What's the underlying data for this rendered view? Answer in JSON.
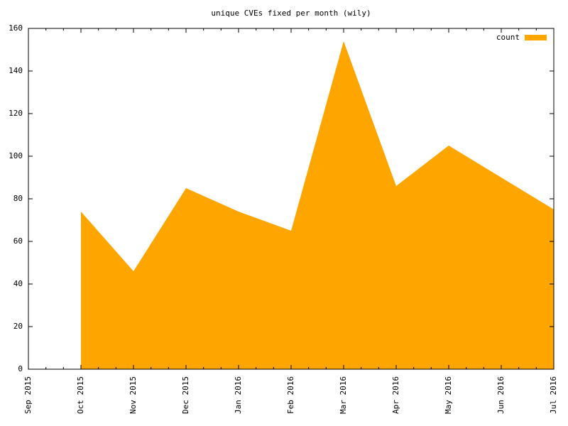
{
  "chart_data": {
    "type": "area",
    "title": "unique CVEs fixed per month (wily)",
    "categories": [
      "Sep 2015",
      "Oct 2015",
      "Nov 2015",
      "Dec 2015",
      "Jan 2016",
      "Feb 2016",
      "Mar 2016",
      "Apr 2016",
      "May 2016",
      "Jun 2016",
      "Jul 2016"
    ],
    "series": [
      {
        "name": "count",
        "color": "#ffa500",
        "values": [
          null,
          74,
          46,
          85,
          74,
          65,
          154,
          86,
          105,
          90,
          75
        ]
      }
    ],
    "ylim": [
      0,
      160
    ],
    "yticks": [
      0,
      20,
      40,
      60,
      80,
      100,
      120,
      140,
      160
    ],
    "grid": false,
    "legend": "top-right"
  }
}
